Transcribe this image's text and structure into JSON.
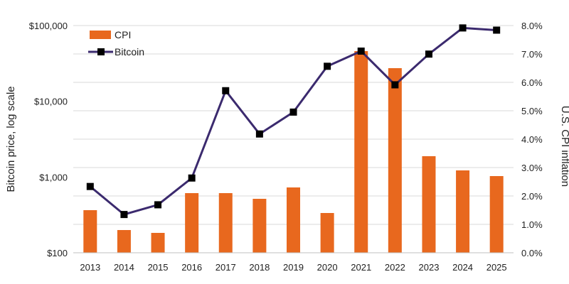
{
  "chart_data": {
    "type": "bar+line",
    "categories": [
      "2013",
      "2014",
      "2015",
      "2016",
      "2017",
      "2018",
      "2019",
      "2020",
      "2021",
      "2022",
      "2023",
      "2024",
      "2025"
    ],
    "series": [
      {
        "name": "CPI",
        "type": "bar",
        "axis": "right",
        "color": "#E8681E",
        "values": [
          1.5,
          0.8,
          0.7,
          2.1,
          2.1,
          1.9,
          2.3,
          1.4,
          7.1,
          6.5,
          3.4,
          2.9,
          2.7
        ]
      },
      {
        "name": "Bitcoin",
        "type": "line",
        "axis": "left",
        "color": "#3B2A6E",
        "marker_color": "#000000",
        "values": [
          750,
          320,
          430,
          970,
          13800,
          3700,
          7200,
          29000,
          46000,
          16500,
          42000,
          93000,
          87000
        ]
      }
    ],
    "y_left": {
      "label": "Bitcoin price, log scale",
      "scale": "log",
      "lim": [
        100,
        100000
      ],
      "ticks": [
        100,
        1000,
        10000,
        100000
      ],
      "tick_labels": [
        "$100",
        "$1,000",
        "$10,000",
        "$100,000"
      ]
    },
    "y_right": {
      "label": "U.S. CPI inflation",
      "scale": "linear",
      "lim": [
        0,
        8
      ],
      "ticks": [
        0,
        1,
        2,
        3,
        4,
        5,
        6,
        7,
        8
      ],
      "tick_labels": [
        "0.0%",
        "1.0%",
        "2.0%",
        "3.0%",
        "4.0%",
        "5.0%",
        "6.0%",
        "7.0%",
        "8.0%"
      ]
    },
    "grid": "horizontal",
    "legend": "top-left"
  }
}
